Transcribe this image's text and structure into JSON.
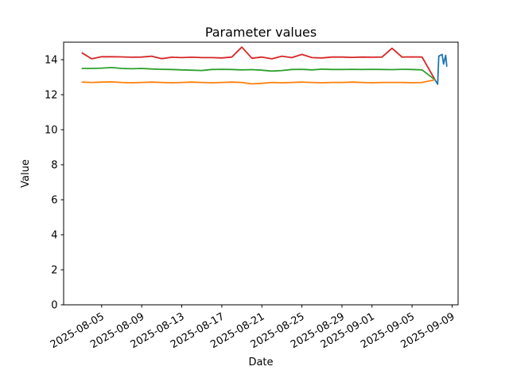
{
  "figure": {
    "background": "#ffffff",
    "axis_color": "#000000"
  },
  "chart_data": {
    "type": "line",
    "title": "Parameter values",
    "xlabel": "Date",
    "ylabel": "Value",
    "grid": false,
    "legend": "none",
    "ylim": [
      0,
      15
    ],
    "x_unit": "days since 2025-08-01",
    "xlim": [
      0.2,
      39.6
    ],
    "yticks": [
      0,
      2,
      4,
      6,
      8,
      10,
      12,
      14
    ],
    "xticks": [
      {
        "t": 4,
        "label": "2025-08-05"
      },
      {
        "t": 8,
        "label": "2025-08-09"
      },
      {
        "t": 12,
        "label": "2025-08-13"
      },
      {
        "t": 16,
        "label": "2025-08-17"
      },
      {
        "t": 20,
        "label": "2025-08-21"
      },
      {
        "t": 24,
        "label": "2025-08-25"
      },
      {
        "t": 28,
        "label": "2025-08-29"
      },
      {
        "t": 31,
        "label": "2025-09-01"
      },
      {
        "t": 35,
        "label": "2025-09-05"
      },
      {
        "t": 39,
        "label": "2025-09-09"
      }
    ],
    "series": [
      {
        "name": "red",
        "color": "#d62728",
        "x": [
          2,
          3,
          4,
          5,
          6,
          7,
          8,
          9,
          10,
          11,
          12,
          13,
          14,
          15,
          16,
          17,
          18,
          19,
          20,
          21,
          22,
          23,
          24,
          25,
          26,
          27,
          28,
          29,
          30,
          31,
          32,
          33,
          34,
          35,
          36,
          37.3
        ],
        "y": [
          14.4,
          14.05,
          14.17,
          14.17,
          14.16,
          14.14,
          14.15,
          14.2,
          14.06,
          14.14,
          14.12,
          14.14,
          14.12,
          14.12,
          14.1,
          14.15,
          14.72,
          14.08,
          14.15,
          14.05,
          14.2,
          14.12,
          14.3,
          14.12,
          14.1,
          14.15,
          14.15,
          14.13,
          14.15,
          14.14,
          14.15,
          14.65,
          14.15,
          14.16,
          14.15,
          12.85
        ]
      },
      {
        "name": "green",
        "color": "#2ca02c",
        "x": [
          2,
          3,
          4,
          5,
          6,
          7,
          8,
          9,
          10,
          11,
          12,
          13,
          14,
          15,
          16,
          17,
          18,
          19,
          20,
          21,
          22,
          23,
          24,
          25,
          26,
          27,
          28,
          29,
          30,
          31,
          32,
          33,
          34,
          35,
          36,
          37.3
        ],
        "y": [
          13.5,
          13.5,
          13.52,
          13.55,
          13.5,
          13.48,
          13.5,
          13.47,
          13.45,
          13.44,
          13.42,
          13.4,
          13.38,
          13.44,
          13.45,
          13.44,
          13.42,
          13.43,
          13.4,
          13.35,
          13.38,
          13.44,
          13.45,
          13.42,
          13.46,
          13.44,
          13.44,
          13.45,
          13.44,
          13.45,
          13.44,
          13.43,
          13.45,
          13.44,
          13.42,
          12.85
        ]
      },
      {
        "name": "orange",
        "color": "#ff7f0e",
        "x": [
          2,
          3,
          4,
          5,
          6,
          7,
          8,
          9,
          10,
          11,
          12,
          13,
          14,
          15,
          16,
          17,
          18,
          19,
          20,
          21,
          22,
          23,
          24,
          25,
          26,
          27,
          28,
          29,
          30,
          31,
          32,
          33,
          34,
          35,
          36,
          37.3
        ],
        "y": [
          12.72,
          12.7,
          12.72,
          12.73,
          12.7,
          12.68,
          12.7,
          12.72,
          12.7,
          12.68,
          12.7,
          12.72,
          12.7,
          12.68,
          12.7,
          12.72,
          12.7,
          12.62,
          12.65,
          12.7,
          12.68,
          12.7,
          12.72,
          12.7,
          12.68,
          12.7,
          12.7,
          12.72,
          12.7,
          12.68,
          12.7,
          12.7,
          12.7,
          12.68,
          12.7,
          12.85
        ]
      },
      {
        "name": "blue",
        "color": "#1f77b4",
        "x": [
          37.3,
          37.56,
          37.67,
          38.0,
          38.15,
          38.36,
          38.47
        ],
        "y": [
          12.85,
          12.6,
          14.2,
          14.3,
          13.75,
          14.25,
          13.6
        ]
      }
    ]
  }
}
